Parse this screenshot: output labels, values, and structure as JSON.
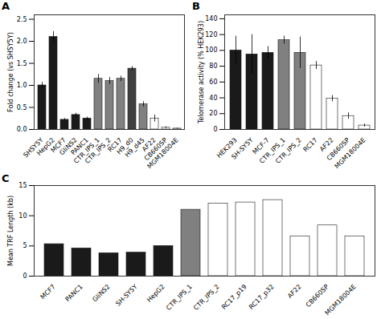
{
  "chart_data": [
    {
      "type": "bar",
      "title": "A",
      "categories": [
        "SHSY5Y",
        "HepG2",
        "MCF7",
        "GliNS2",
        "PANC1",
        "CTR_IPS_1",
        "CTR_IPS_2",
        "RC17",
        "H9_d0",
        "H9_d45",
        "AF22",
        "CB660SP",
        "MGM18004E"
      ],
      "values": [
        1.0,
        2.1,
        0.22,
        0.33,
        0.25,
        1.15,
        1.1,
        1.15,
        1.38,
        0.57,
        0.25,
        0.04,
        0.02
      ],
      "errors": [
        0.07,
        0.12,
        0.03,
        0.04,
        0.03,
        0.1,
        0.08,
        0.06,
        0.05,
        0.06,
        0.08,
        0.02,
        0.01
      ],
      "colors": [
        "#1a1a1a",
        "#1a1a1a",
        "#1a1a1a",
        "#1a1a1a",
        "#1a1a1a",
        "#808080",
        "#808080",
        "#808080",
        "#404040",
        "#808080",
        "white",
        "white",
        "white"
      ],
      "ylabel": "Fold change (vs SHSY5Y)",
      "ylim": [
        0,
        2.6
      ],
      "yticks": [
        {
          "value": 0,
          "label": "0.0"
        },
        0.5,
        {
          "value": 1.0,
          "label": "1.0"
        },
        1.5,
        {
          "value": 2.0,
          "label": "2.0"
        },
        2.5
      ]
    },
    {
      "type": "bar",
      "title": "B",
      "categories": [
        "HEK293",
        "SH-SY5Y",
        "MCF-7",
        "CTR_IPS_1",
        "CTR_IPS_2",
        "RC17",
        "AF22",
        "CB660SP",
        "MGM18004E"
      ],
      "values": [
        100,
        95,
        97,
        113,
        97,
        81,
        39,
        17,
        5
      ],
      "errors": [
        18,
        25,
        8,
        5,
        20,
        5,
        4,
        4,
        2
      ],
      "colors": [
        "#1a1a1a",
        "#1a1a1a",
        "#1a1a1a",
        "#808080",
        "#808080",
        "white",
        "white",
        "white",
        "white"
      ],
      "ylabel": "Telomerase activity (% HEK293)",
      "ylim": [
        0,
        145
      ],
      "yticks": [
        0,
        20,
        40,
        60,
        80,
        100,
        120,
        140
      ]
    },
    {
      "type": "bar",
      "title": "C",
      "categories": [
        "MCF7",
        "PANC1",
        "GliNS2",
        "SH-SY5Y",
        "HepG2",
        "CTR_IPS_1",
        "CTR_IPS_2",
        "RC17_p19",
        "RC17_p32",
        "AF22",
        "CB660SP",
        "MGM18004E"
      ],
      "values": [
        5.3,
        4.6,
        3.8,
        3.9,
        5.0,
        11.0,
        12.0,
        12.2,
        12.6,
        6.6,
        8.4,
        6.6
      ],
      "colors": [
        "#1a1a1a",
        "#1a1a1a",
        "#1a1a1a",
        "#1a1a1a",
        "#1a1a1a",
        "#808080",
        "white",
        "white",
        "white",
        "white",
        "white",
        "white"
      ],
      "ylabel": "Mean TRF Length (kb)",
      "ylim": [
        0,
        15
      ],
      "yticks": [
        0,
        5,
        10,
        15
      ]
    }
  ]
}
